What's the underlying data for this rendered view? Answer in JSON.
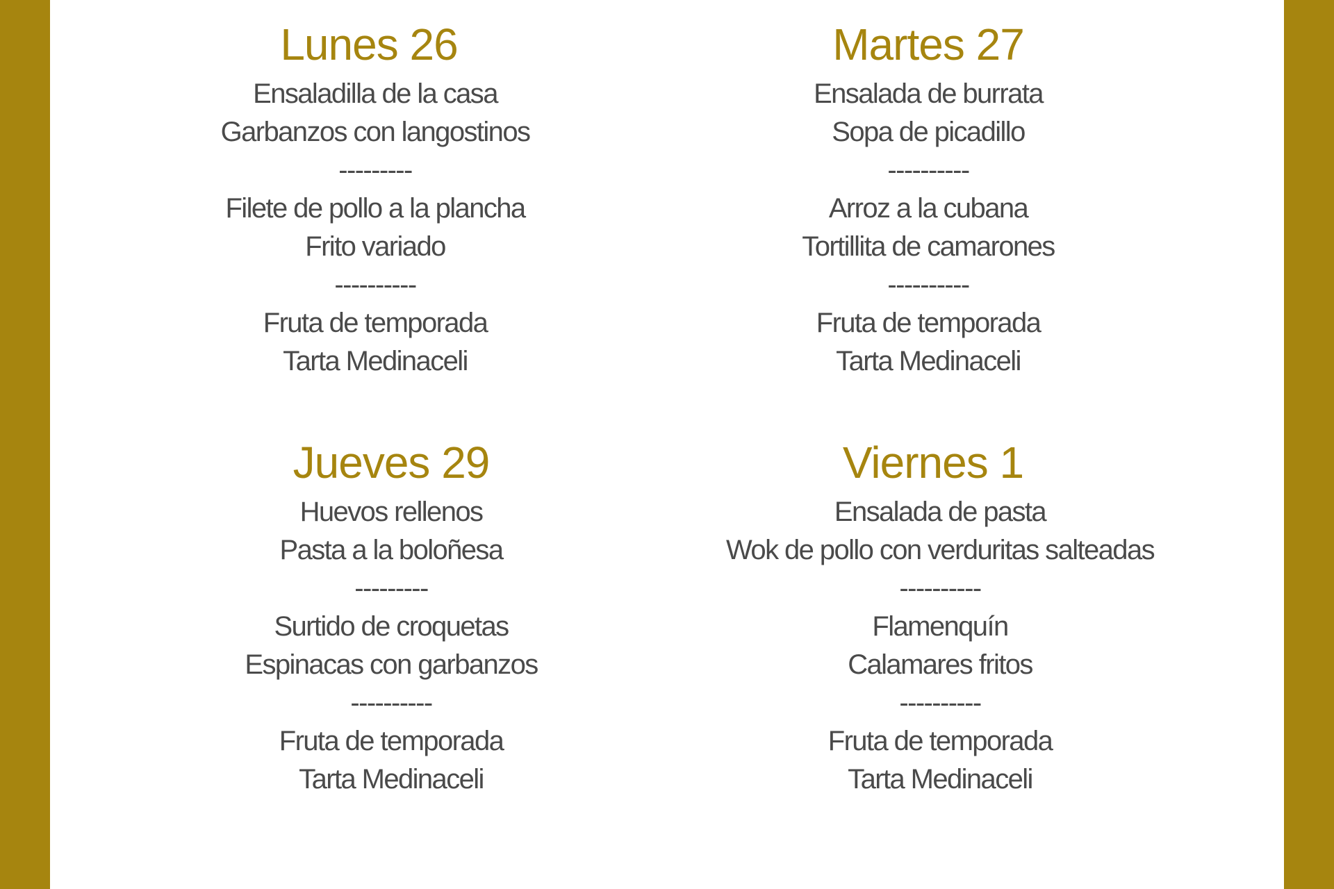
{
  "colors": {
    "accent": "#a6850f",
    "text": "#4a4a4a"
  },
  "days": [
    {
      "title": "Lunes 26",
      "items": [
        "Ensaladilla de la casa",
        "Garbanzos con langostinos",
        "---------",
        "Filete de pollo a la plancha",
        "Frito variado",
        "----------",
        "Fruta de temporada",
        "Tarta Medinaceli"
      ]
    },
    {
      "title": "Martes 27",
      "items": [
        "Ensalada de burrata",
        "Sopa de picadillo",
        "----------",
        "Arroz a la cubana",
        "Tortillita de camarones",
        "----------",
        "Fruta de temporada",
        "Tarta Medinaceli"
      ]
    },
    {
      "title": "Jueves 29",
      "items": [
        "Huevos rellenos",
        "Pasta a la boloñesa",
        "---------",
        "Surtido de croquetas",
        "Espinacas con garbanzos",
        "----------",
        "Fruta de temporada",
        "Tarta Medinaceli"
      ]
    },
    {
      "title": "Viernes 1",
      "items": [
        "Ensalada de pasta",
        "Wok de pollo con verduritas salteadas",
        "----------",
        "Flamenquín",
        "Calamares fritos",
        "----------",
        "Fruta de temporada",
        "Tarta Medinaceli"
      ]
    }
  ]
}
